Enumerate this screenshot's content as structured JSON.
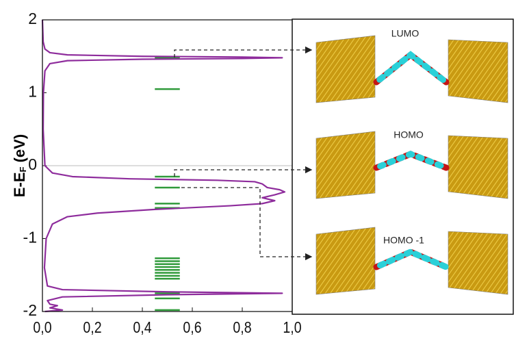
{
  "chart_data": {
    "type": "line",
    "orientation": "horizontal",
    "xlim": [
      0,
      1.0
    ],
    "xticks": [
      {
        "value": 0,
        "label": "0,0"
      },
      {
        "value": 0.2,
        "label": "0,2"
      },
      {
        "value": 0.4,
        "label": "0,4"
      },
      {
        "value": 0.6,
        "label": "0,6"
      },
      {
        "value": 0.8,
        "label": "0,8"
      },
      {
        "value": 1.0,
        "label": "1,0"
      }
    ],
    "ylim": [
      -2,
      2
    ],
    "yticks": [
      2,
      1,
      0,
      -1,
      -2
    ],
    "ylabel": {
      "main": "E-E",
      "sub": "F",
      "unit": " (eV)"
    },
    "series": [
      {
        "color": "#8e2c9c",
        "energy": [
          2.0,
          1.7,
          1.6,
          1.55,
          1.52,
          1.5,
          1.49,
          1.48,
          1.47,
          1.46,
          1.44,
          1.4,
          1.3,
          1.0,
          0.5,
          0.0,
          -0.1,
          -0.15,
          -0.18,
          -0.2,
          -0.22,
          -0.25,
          -0.3,
          -0.33,
          -0.36,
          -0.4,
          -0.44,
          -0.48,
          -0.52,
          -0.55,
          -0.6,
          -0.65,
          -0.7,
          -0.8,
          -1.0,
          -1.4,
          -1.65,
          -1.7,
          -1.73,
          -1.75,
          -1.77,
          -1.8,
          -1.85,
          -1.9,
          -1.92,
          -1.95,
          -1.98,
          -2.0
        ],
        "values": [
          0,
          0.003,
          0.01,
          0.03,
          0.1,
          0.4,
          0.8,
          0.96,
          0.8,
          0.4,
          0.1,
          0.03,
          0.01,
          0.004,
          0.003,
          0.01,
          0.04,
          0.12,
          0.35,
          0.7,
          0.85,
          0.88,
          0.9,
          0.95,
          0.97,
          0.93,
          0.88,
          0.93,
          0.88,
          0.75,
          0.45,
          0.22,
          0.1,
          0.04,
          0.015,
          0.008,
          0.02,
          0.08,
          0.5,
          0.96,
          0.5,
          0.08,
          0.02,
          0.03,
          0.06,
          0.03,
          0.08,
          0.01
        ]
      }
    ],
    "levels": [
      1.48,
      1.05,
      -0.15,
      -0.3,
      -0.52,
      -0.58,
      -1.27,
      -1.31,
      -1.35,
      -1.39,
      -1.43,
      -1.47,
      -1.51,
      -1.55,
      -1.75,
      -1.82,
      -1.98
    ],
    "levels_color": "#2f9a3a",
    "zero_line": true,
    "panels": [
      {
        "title": "LUMO"
      },
      {
        "title": "HOMO"
      },
      {
        "title": "HOMO -1"
      }
    ]
  }
}
